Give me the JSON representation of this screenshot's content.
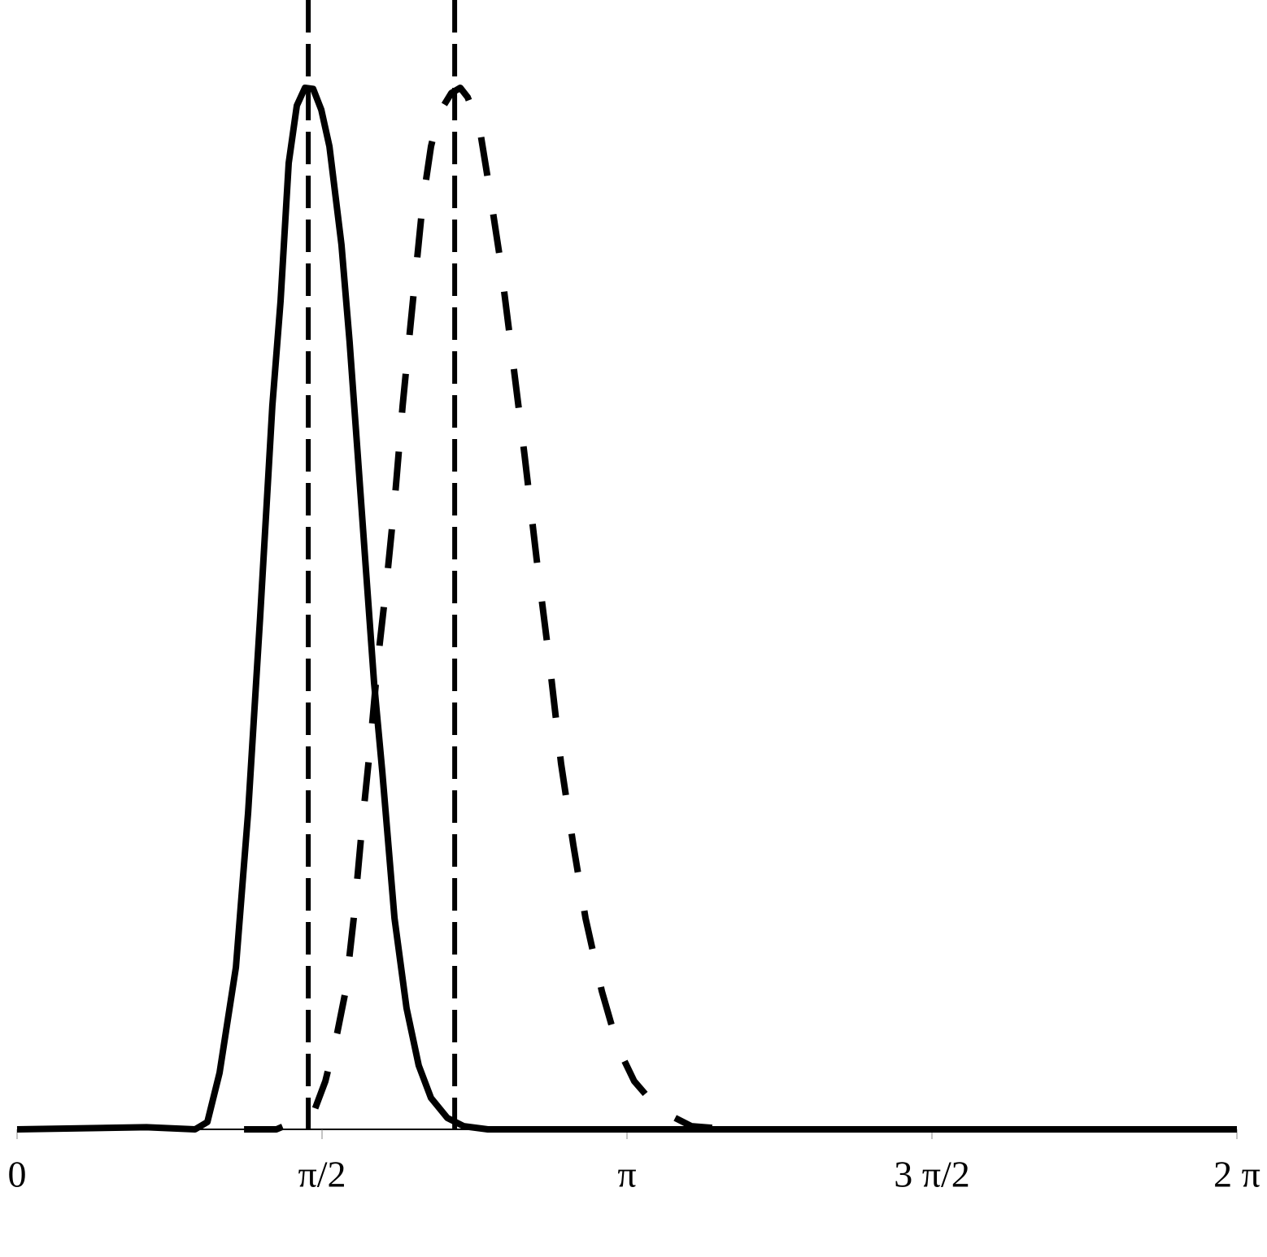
{
  "chart_data": {
    "type": "line",
    "xlim": [
      0,
      6.2832
    ],
    "ylim": [
      0,
      1.08
    ],
    "xticks": [
      0,
      {
        "value": 1.5708,
        "label": "π/2"
      },
      {
        "value": 3.1416,
        "label": "π"
      },
      {
        "value": 4.7124,
        "label": "3 π/2"
      },
      {
        "value": 6.2832,
        "label": "2 π"
      }
    ],
    "vlines": [
      1.5,
      2.254
    ],
    "series": [
      {
        "color": "#000000",
        "style": "solid",
        "x": [
          0,
          0.666,
          0.917,
          0.98,
          1.043,
          1.127,
          1.19,
          1.252,
          1.315,
          1.357,
          1.399,
          1.441,
          1.483,
          1.525,
          1.567,
          1.609,
          1.671,
          1.713,
          1.755,
          1.797,
          1.839,
          1.881,
          1.944,
          2.006,
          2.069,
          2.132,
          2.216,
          2.3,
          2.425,
          6.283
        ],
        "values": [
          0,
          0.002,
          0,
          0.007,
          0.054,
          0.155,
          0.303,
          0.49,
          0.692,
          0.792,
          0.924,
          0.979,
          0.996,
          0.995,
          0.975,
          0.94,
          0.846,
          0.753,
          0.644,
          0.535,
          0.427,
          0.342,
          0.202,
          0.116,
          0.061,
          0.03,
          0.011,
          0.003,
          0,
          0
        ]
      },
      {
        "color": "#000000",
        "style": "dashed",
        "x": [
          1.169,
          1.336,
          1.525,
          1.588,
          1.65,
          1.692,
          1.734,
          1.776,
          1.818,
          1.86,
          1.902,
          1.944,
          1.986,
          2.027,
          2.069,
          2.09,
          2.132,
          2.174,
          2.237,
          2.283,
          2.321,
          2.384,
          2.425,
          2.488,
          2.551,
          2.614,
          2.677,
          2.74,
          2.802,
          2.865,
          2.928,
          3.012,
          3.096,
          3.179,
          3.305,
          3.473,
          3.682,
          6.283
        ],
        "values": [
          0,
          0,
          0.015,
          0.046,
          0.093,
          0.132,
          0.202,
          0.288,
          0.365,
          0.451,
          0.521,
          0.599,
          0.692,
          0.77,
          0.848,
          0.887,
          0.94,
          0.972,
          0.991,
          0.996,
          0.987,
          0.956,
          0.909,
          0.832,
          0.739,
          0.645,
          0.544,
          0.451,
          0.35,
          0.272,
          0.202,
          0.132,
          0.078,
          0.046,
          0.019,
          0.003,
          0,
          0
        ]
      }
    ]
  }
}
